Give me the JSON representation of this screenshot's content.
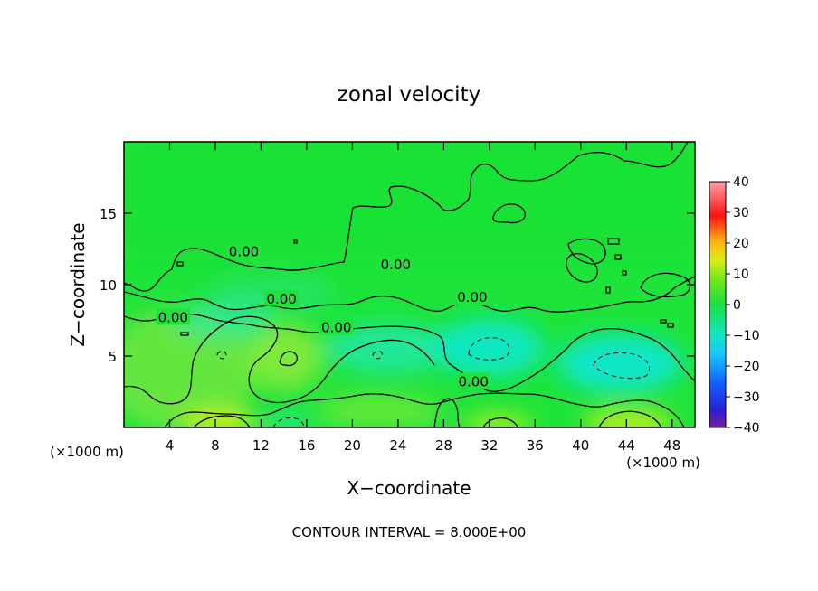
{
  "chart_data": {
    "type": "heatmap",
    "title": "zonal velocity",
    "xlabel": "X−coordinate",
    "ylabel": "Z−coordinate",
    "x_unit": "(×1000 m)",
    "y_unit": "(×1000 m)",
    "xlim": [
      0,
      50
    ],
    "ylim": [
      0,
      20
    ],
    "x_ticks": [
      4,
      8,
      12,
      16,
      20,
      24,
      28,
      32,
      36,
      40,
      44,
      48
    ],
    "y_ticks": [
      5,
      10,
      15
    ],
    "contour_interval_text": "CONTOUR INTERVAL = 8.000E+00",
    "colorbar": {
      "min": -40,
      "max": 40,
      "ticks": [
        40,
        30,
        20,
        10,
        0,
        -10,
        -20,
        -30,
        -40
      ],
      "tick_labels": [
        "40",
        "30",
        "20",
        "10",
        "0",
        "−10",
        "−20",
        "−30",
        "−40"
      ]
    },
    "contour_label_text": "0.00",
    "contour_labels_at": [
      {
        "x": 4.3,
        "y": 7.7
      },
      {
        "x": 10.5,
        "y": 12.3
      },
      {
        "x": 13.8,
        "y": 9.0
      },
      {
        "x": 18.6,
        "y": 7.0
      },
      {
        "x": 23.8,
        "y": 11.4
      },
      {
        "x": 30.5,
        "y": 9.1
      },
      {
        "x": 30.6,
        "y": 3.2
      }
    ],
    "features": [
      {
        "kind": "max",
        "x": 8.3,
        "y": 0.5,
        "value": 10
      },
      {
        "kind": "max",
        "x": 14.3,
        "y": 5.0,
        "value": 8
      },
      {
        "kind": "min",
        "x": 14.5,
        "y": 0.5,
        "value": -8
      },
      {
        "kind": "min",
        "x": 32.0,
        "y": 5.5,
        "value": -10
      },
      {
        "kind": "max",
        "x": 32.0,
        "y": 0.5,
        "value": 9
      },
      {
        "kind": "min",
        "x": 43.5,
        "y": 4.2,
        "value": -12
      },
      {
        "kind": "max",
        "x": 43.5,
        "y": 0.5,
        "value": 11
      }
    ]
  }
}
